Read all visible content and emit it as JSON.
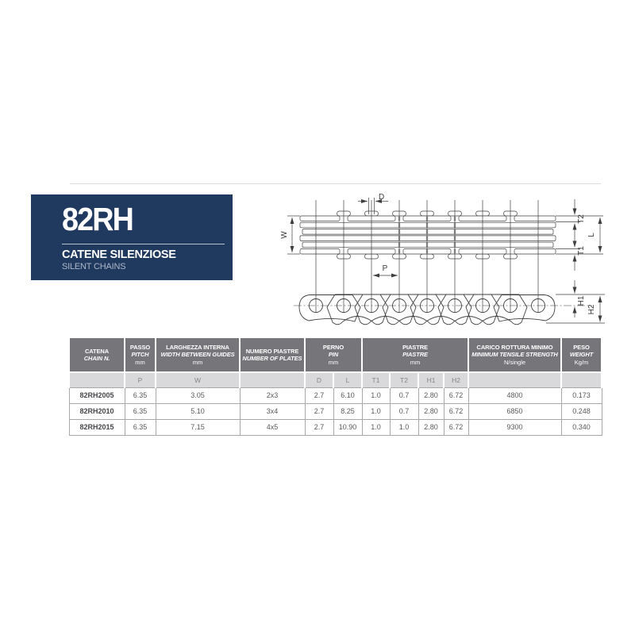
{
  "brand": {
    "model": "82RH",
    "title_it": "CATENE SILENZIOSE",
    "title_en": "SILENT CHAINS"
  },
  "diagram": {
    "d": "D",
    "w": "W",
    "t2": "T2",
    "t1": "T1",
    "l": "L",
    "p": "P",
    "h1": "H1",
    "h2": "H2"
  },
  "table": {
    "groups": [
      {
        "it": "CATENA",
        "en": "CHAIN N.",
        "unit": ""
      },
      {
        "it": "PASSO",
        "en": "PITCH",
        "unit": "mm"
      },
      {
        "it": "LARGHEZZA INTERNA",
        "en": "WIDTH BETWEEN GUIDES",
        "unit": "mm"
      },
      {
        "it": "NUMERO PIASTRE",
        "en": "NUMBER OF PLATES",
        "unit": ""
      },
      {
        "it": "PERNO",
        "en": "PIN",
        "unit": "mm"
      },
      {
        "it": "PIASTRE",
        "en": "PIASTRE",
        "unit": "mm"
      },
      {
        "it": "CARICO ROTTURA MINIMO",
        "en": "MINIMUM TENSILE STRENGTH",
        "unit": "N/single"
      },
      {
        "it": "PESO",
        "en": "WEIGHT",
        "unit": "Kg/m"
      }
    ],
    "sub_headers": [
      "",
      "P",
      "W",
      "",
      "D",
      "L",
      "T1",
      "T2",
      "H1",
      "H2",
      "",
      ""
    ],
    "rows": [
      [
        "82RH2005",
        "6.35",
        "3.05",
        "2x3",
        "2.7",
        "6.10",
        "1.0",
        "0.7",
        "2.80",
        "6.72",
        "4800",
        "0.173"
      ],
      [
        "82RH2010",
        "6.35",
        "5.10",
        "3x4",
        "2.7",
        "8.25",
        "1.0",
        "0.7",
        "2.80",
        "6.72",
        "6850",
        "0.248"
      ],
      [
        "82RH2015",
        "6.35",
        "7.15",
        "4x5",
        "2.7",
        "10.90",
        "1.0",
        "1.0",
        "2.80",
        "6.72",
        "9300",
        "0.340"
      ]
    ]
  },
  "colors": {
    "brand_blue": "#20395e",
    "header_gray": "#76757a",
    "subheader_gray": "#d9d9db",
    "border_gray": "#a8a8ab",
    "line_dark": "#3f3f3f"
  }
}
